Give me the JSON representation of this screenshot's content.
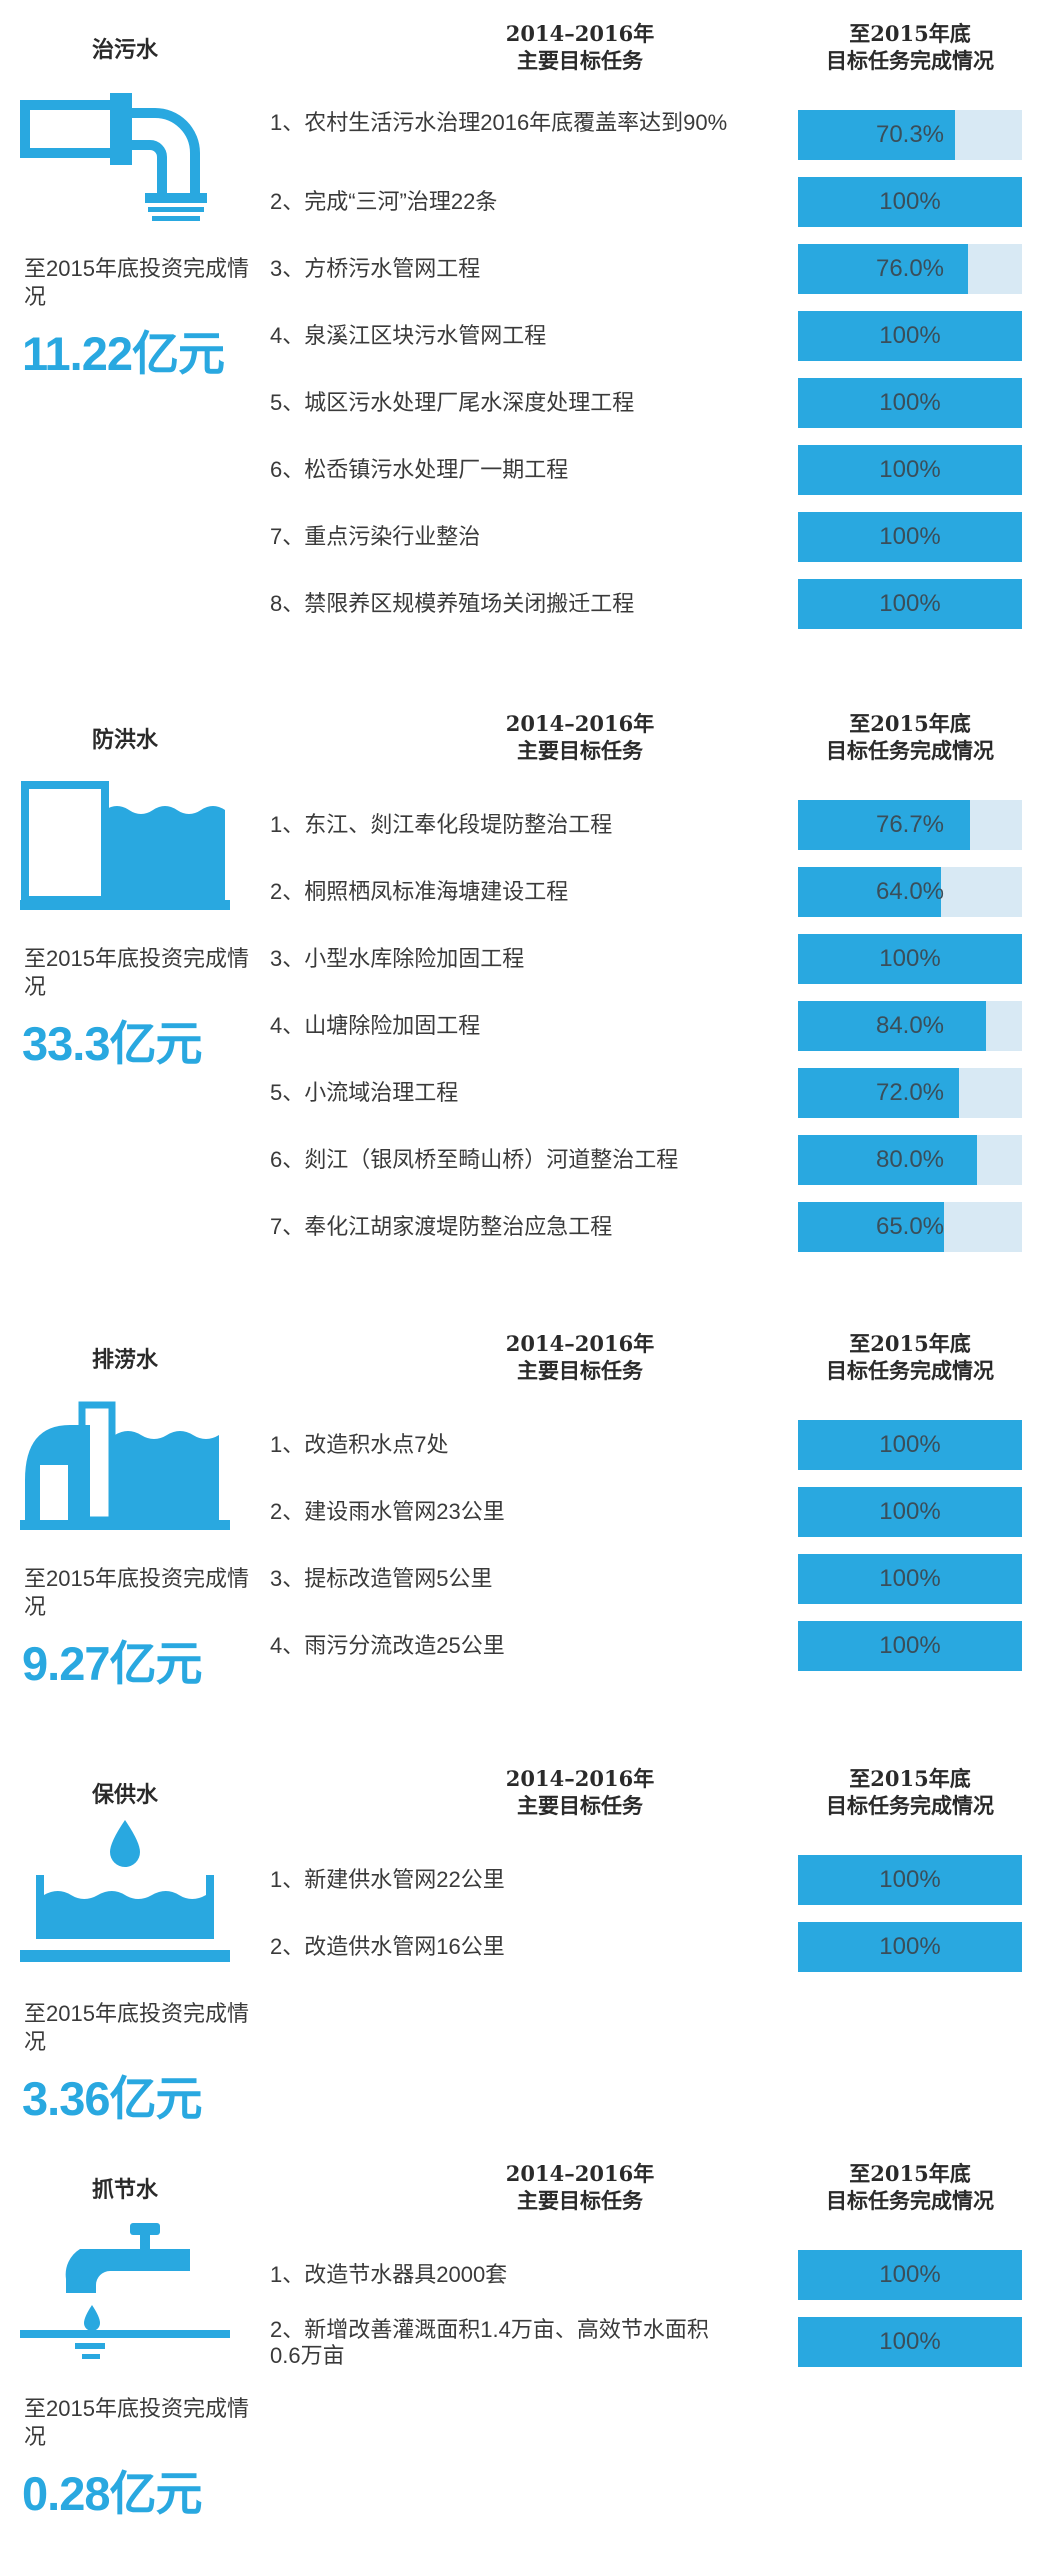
{
  "colors": {
    "accent": "#29a8e0",
    "track": "#d8e9f4",
    "text": "#3a3a3a"
  },
  "headers": {
    "tasks_line1": "2014–2016年",
    "tasks_line2": "主要目标任务",
    "status_line1": "至2015年底",
    "status_line2": "目标任务完成情况"
  },
  "chart_data": [
    {
      "type": "bar",
      "title": "治污水",
      "icon": "sewage-pipe-icon",
      "invest_label": "至2015年底投资完成情况",
      "invest_value": "11.22亿元",
      "categories": [
        "1、农村生活污水治理2016年底覆盖率达到90%",
        "2、完成“三河”治理22条",
        "3、方桥污水管网工程",
        "4、泉溪江区块污水管网工程",
        "5、城区污水处理厂尾水深度处理工程",
        "6、松岙镇污水处理厂一期工程",
        "7、重点污染行业整治",
        "8、禁限养区规模养殖场关闭搬迁工程"
      ],
      "values": [
        70.3,
        100,
        76.0,
        100,
        100,
        100,
        100,
        100
      ],
      "labels": [
        "70.3%",
        "100%",
        "76.0%",
        "100%",
        "100%",
        "100%",
        "100%",
        "100%"
      ],
      "ylim": [
        0,
        100
      ]
    },
    {
      "type": "bar",
      "title": "防洪水",
      "icon": "flood-wall-icon",
      "invest_label": "至2015年底投资完成情况",
      "invest_value": "33.3亿元",
      "categories": [
        "1、东江、剡江奉化段堤防整治工程",
        "2、桐照栖凤标准海塘建设工程",
        "3、小型水库除险加固工程",
        "4、山塘除险加固工程",
        "5、小流域治理工程",
        "6、剡江（银凤桥至畸山桥）河道整治工程",
        "7、奉化江胡家渡堤防整治应急工程"
      ],
      "values": [
        76.7,
        64.0,
        100,
        84.0,
        72.0,
        80.0,
        65.0
      ],
      "labels": [
        "76.7%",
        "64.0%",
        "100%",
        "84.0%",
        "72.0%",
        "80.0%",
        "65.0%"
      ],
      "ylim": [
        0,
        100
      ]
    },
    {
      "type": "bar",
      "title": "排涝水",
      "icon": "drainage-pump-icon",
      "invest_label": "至2015年底投资完成情况",
      "invest_value": "9.27亿元",
      "categories": [
        "1、改造积水点7处",
        "2、建设雨水管网23公里",
        "3、提标改造管网5公里",
        "4、雨污分流改造25公里"
      ],
      "values": [
        100,
        100,
        100,
        100
      ],
      "labels": [
        "100%",
        "100%",
        "100%",
        "100%"
      ],
      "ylim": [
        0,
        100
      ]
    },
    {
      "type": "bar",
      "title": "保供水",
      "icon": "water-drop-basin-icon",
      "invest_label": "至2015年底投资完成情况",
      "invest_value": "3.36亿元",
      "categories": [
        "1、新建供水管网22公里",
        "2、改造供水管网16公里"
      ],
      "values": [
        100,
        100
      ],
      "labels": [
        "100%",
        "100%"
      ],
      "ylim": [
        0,
        100
      ]
    },
    {
      "type": "bar",
      "title": "抓节水",
      "icon": "faucet-icon",
      "invest_label": "至2015年底投资完成情况",
      "invest_value": "0.28亿元",
      "categories": [
        "1、改造节水器具2000套",
        "2、新增改善灌溉面积1.4万亩、高效节水面积0.6万亩"
      ],
      "values": [
        100,
        100
      ],
      "labels": [
        "100%",
        "100%"
      ],
      "ylim": [
        0,
        100
      ]
    }
  ]
}
